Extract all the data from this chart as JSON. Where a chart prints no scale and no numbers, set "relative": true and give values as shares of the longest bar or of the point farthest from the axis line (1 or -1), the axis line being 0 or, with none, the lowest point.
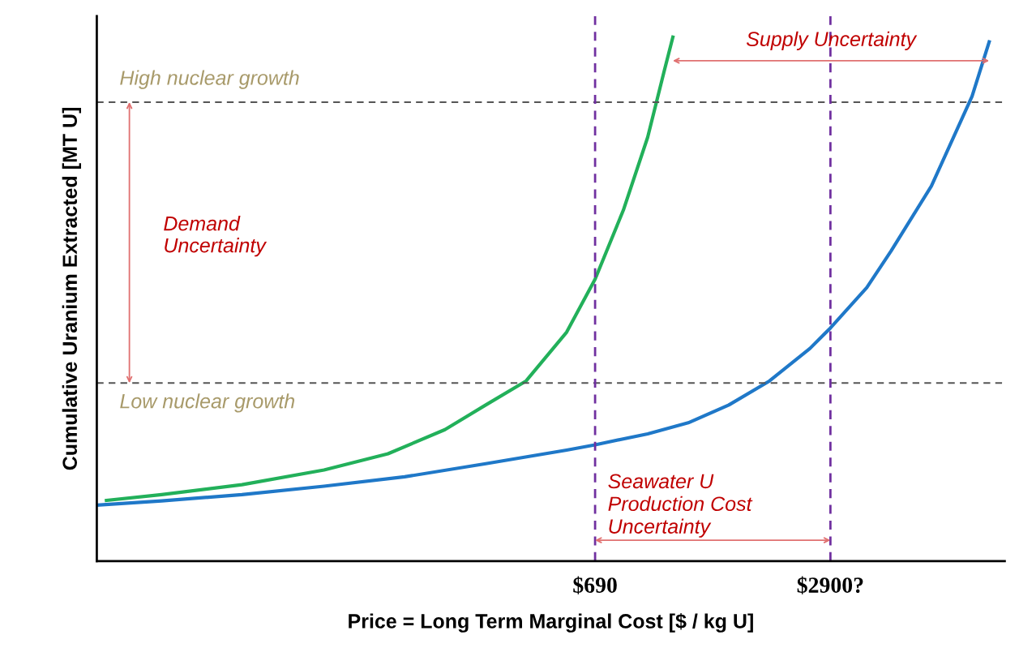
{
  "chart_data": {
    "type": "line",
    "xlabel": "Price = Long Term Marginal Cost [$ / kg U]",
    "ylabel": "Cumulative Uranium Extracted [MT U]",
    "relative": true,
    "log": "x",
    "xlim": [
      33,
      8400
    ],
    "xticks": [
      {
        "value": 690,
        "label": "$690"
      },
      {
        "value": 2900,
        "label": "$2900?"
      }
    ],
    "tick_labels": "x",
    "grid": false,
    "legend": false,
    "marker": "none",
    "line_style": "solid",
    "series": [
      {
        "color": "#22b05a",
        "x": [
          35,
          49,
          80,
          132,
          195,
          276,
          354,
          453,
          580,
          690,
          820,
          951,
          1050,
          1109
        ],
        "values": [
          0.116,
          0.127,
          0.146,
          0.174,
          0.205,
          0.251,
          0.298,
          0.344,
          0.437,
          0.538,
          0.67,
          0.809,
          0.933,
          1.0
        ]
      },
      {
        "color": "#1f78c8",
        "x": [
          33,
          49,
          80,
          132,
          216,
          354,
          580,
          690,
          951,
          1218,
          1560,
          2000,
          2560,
          2900,
          3620,
          4200,
          5370,
          6880,
          7640
        ],
        "values": [
          0.107,
          0.115,
          0.127,
          0.143,
          0.161,
          0.186,
          0.212,
          0.222,
          0.243,
          0.264,
          0.298,
          0.344,
          0.406,
          0.445,
          0.522,
          0.592,
          0.716,
          0.887,
          0.991
        ]
      }
    ],
    "ref_lines": [
      {
        "axis": "y",
        "value": 0.876,
        "label": "High nuclear growth",
        "color": "#555555",
        "line_style": "dashed"
      },
      {
        "axis": "y",
        "value": 0.34,
        "label": "Low nuclear growth",
        "color": "#555555",
        "line_style": "dashed"
      },
      {
        "axis": "x",
        "value": 690,
        "color": "#7030a0",
        "line_style": "dashed"
      },
      {
        "axis": "x",
        "value": 2900,
        "color": "#7030a0",
        "line_style": "dashed"
      }
    ],
    "annotations": [
      "Supply Uncertainty",
      "Demand\nUncertainty",
      "Seawater U\nProduction Cost\nUncertainty"
    ]
  }
}
